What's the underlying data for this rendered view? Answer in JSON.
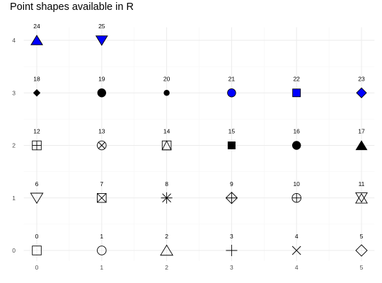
{
  "chart_data": {
    "type": "scatter",
    "title": "Point shapes available in R",
    "xlabel": "",
    "ylabel": "",
    "xlim": [
      -0.2,
      5.2
    ],
    "ylim": [
      -0.2,
      4.25
    ],
    "x_ticks": [
      "0",
      "1",
      "2",
      "3",
      "4",
      "5"
    ],
    "y_ticks": [
      "0",
      "1",
      "2",
      "3",
      "4"
    ],
    "grid": true,
    "fill_color": "#0000ff",
    "outline_color": "#000000",
    "points": [
      {
        "x": 0,
        "y": 0,
        "label": "0"
      },
      {
        "x": 1,
        "y": 0,
        "label": "1"
      },
      {
        "x": 2,
        "y": 0,
        "label": "2"
      },
      {
        "x": 3,
        "y": 0,
        "label": "3"
      },
      {
        "x": 4,
        "y": 0,
        "label": "4"
      },
      {
        "x": 5,
        "y": 0,
        "label": "5"
      },
      {
        "x": 0,
        "y": 1,
        "label": "6"
      },
      {
        "x": 1,
        "y": 1,
        "label": "7"
      },
      {
        "x": 2,
        "y": 1,
        "label": "8"
      },
      {
        "x": 3,
        "y": 1,
        "label": "9"
      },
      {
        "x": 4,
        "y": 1,
        "label": "10"
      },
      {
        "x": 5,
        "y": 1,
        "label": "11"
      },
      {
        "x": 0,
        "y": 2,
        "label": "12"
      },
      {
        "x": 1,
        "y": 2,
        "label": "13"
      },
      {
        "x": 2,
        "y": 2,
        "label": "14"
      },
      {
        "x": 3,
        "y": 2,
        "label": "15"
      },
      {
        "x": 4,
        "y": 2,
        "label": "16"
      },
      {
        "x": 5,
        "y": 2,
        "label": "17"
      },
      {
        "x": 0,
        "y": 3,
        "label": "18"
      },
      {
        "x": 1,
        "y": 3,
        "label": "19"
      },
      {
        "x": 2,
        "y": 3,
        "label": "20"
      },
      {
        "x": 3,
        "y": 3,
        "label": "21"
      },
      {
        "x": 4,
        "y": 3,
        "label": "22"
      },
      {
        "x": 5,
        "y": 3,
        "label": "23"
      },
      {
        "x": 0,
        "y": 4,
        "label": "24"
      },
      {
        "x": 1,
        "y": 4,
        "label": "25"
      }
    ]
  }
}
